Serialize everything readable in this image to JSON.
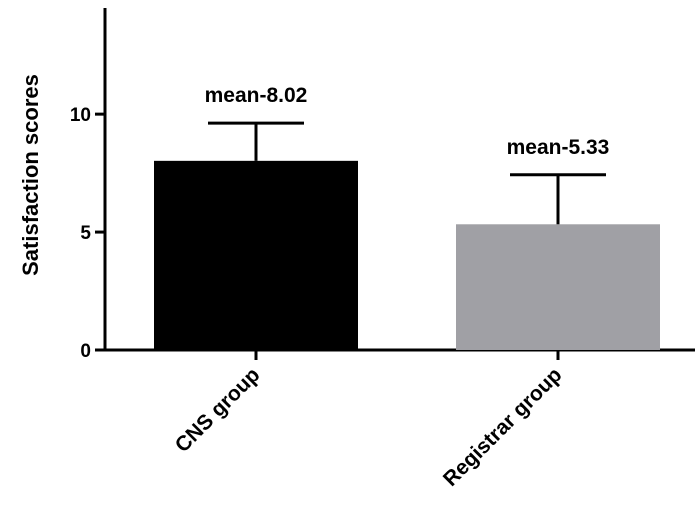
{
  "chart_data": {
    "type": "bar",
    "title": "",
    "xlabel": "",
    "ylabel": "Satisfaction scores",
    "ylim": [
      0,
      14.5
    ],
    "yticks": [
      0,
      5,
      10
    ],
    "ytick_labels": [
      "0",
      "5",
      "10"
    ],
    "grid": false,
    "legend": "none",
    "categories": [
      "CNS group",
      "Registrar group"
    ],
    "values": [
      8.02,
      5.33
    ],
    "error_upper": [
      1.6,
      2.1
    ],
    "data_labels": [
      "mean-8.02",
      "mean-5.33"
    ],
    "bar_colors": [
      "#000000",
      "#a0a0a5"
    ]
  }
}
